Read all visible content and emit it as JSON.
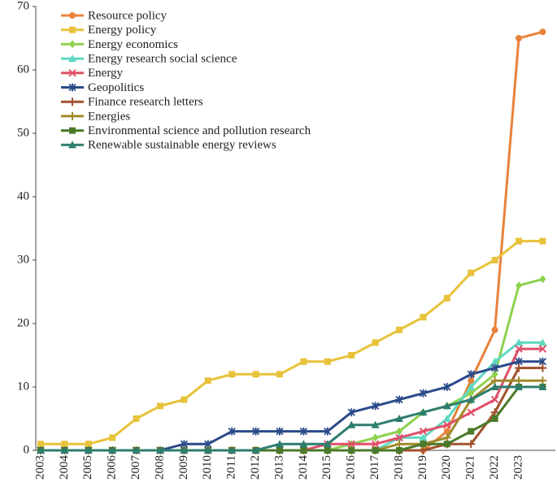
{
  "chart_data": {
    "type": "line",
    "categories": [
      "2003",
      "2004",
      "2005",
      "2006",
      "2007",
      "2008",
      "2009",
      "2010",
      "2011",
      "2012",
      "2013",
      "2014",
      "2015",
      "2016",
      "2017",
      "2018",
      "2019",
      "2020",
      "2021",
      "2022",
      "2023",
      null
    ],
    "series": [
      {
        "name": "Resource policy",
        "color": "#e8823c",
        "marker": "circle",
        "values": [
          0,
          0,
          0,
          0,
          0,
          0,
          0,
          0,
          0,
          0,
          0,
          0,
          0,
          0,
          0,
          0,
          0,
          3,
          11,
          19,
          65,
          66
        ]
      },
      {
        "name": "Energy policy",
        "color": "#e8c23a",
        "marker": "square",
        "values": [
          1,
          1,
          1,
          2,
          5,
          7,
          8,
          11,
          12,
          12,
          12,
          14,
          14,
          15,
          17,
          19,
          21,
          24,
          28,
          30,
          33,
          33
        ]
      },
      {
        "name": "Energy economics",
        "color": "#8ed14e",
        "marker": "diamond",
        "values": [
          0,
          0,
          0,
          0,
          0,
          0,
          0,
          0,
          0,
          0,
          0,
          0,
          0,
          1,
          2,
          3,
          6,
          7,
          9,
          12,
          26,
          27
        ]
      },
      {
        "name": "Energy research social science",
        "color": "#5ed8c0",
        "marker": "triangle",
        "values": [
          0,
          0,
          0,
          0,
          0,
          0,
          0,
          0,
          0,
          0,
          0,
          0,
          0,
          0,
          0,
          2,
          2,
          5,
          10,
          14,
          17,
          17
        ]
      },
      {
        "name": "Energy",
        "color": "#e0506a",
        "marker": "x",
        "values": [
          0,
          0,
          0,
          0,
          0,
          0,
          0,
          0,
          0,
          0,
          0,
          0,
          1,
          1,
          1,
          2,
          3,
          4,
          6,
          8,
          16,
          16
        ]
      },
      {
        "name": "Geopolitics",
        "color": "#2c4a8a",
        "marker": "star",
        "values": [
          0,
          0,
          0,
          0,
          0,
          0,
          1,
          1,
          3,
          3,
          3,
          3,
          3,
          6,
          7,
          8,
          9,
          10,
          12,
          13,
          14,
          14
        ]
      },
      {
        "name": "Finance research letters",
        "color": "#a0522d",
        "marker": "plus",
        "values": [
          0,
          0,
          0,
          0,
          0,
          0,
          0,
          0,
          0,
          0,
          0,
          0,
          0,
          0,
          0,
          0,
          0,
          1,
          1,
          6,
          13,
          13
        ]
      },
      {
        "name": "Energies",
        "color": "#a08a2a",
        "marker": "plus",
        "values": [
          0,
          0,
          0,
          0,
          0,
          0,
          0,
          0,
          0,
          0,
          0,
          0,
          0,
          0,
          0,
          1,
          1,
          2,
          8,
          11,
          11,
          11
        ]
      },
      {
        "name": "Environmental science and pollution research",
        "color": "#4a7a2a",
        "marker": "square",
        "values": [
          0,
          0,
          0,
          0,
          0,
          0,
          0,
          0,
          0,
          0,
          0,
          0,
          0,
          0,
          0,
          0,
          1,
          1,
          3,
          5,
          10,
          10
        ]
      },
      {
        "name": "Renewable sustainable energy reviews",
        "color": "#2e7d6e",
        "marker": "triangle",
        "values": [
          0,
          0,
          0,
          0,
          0,
          0,
          0,
          0,
          0,
          0,
          1,
          1,
          1,
          4,
          4,
          5,
          6,
          7,
          8,
          10,
          10,
          10
        ]
      }
    ],
    "ylim": [
      0,
      70
    ],
    "yticks": [
      0,
      10,
      20,
      30,
      40,
      50,
      60,
      70
    ],
    "grid": false,
    "legend": "upper left"
  }
}
